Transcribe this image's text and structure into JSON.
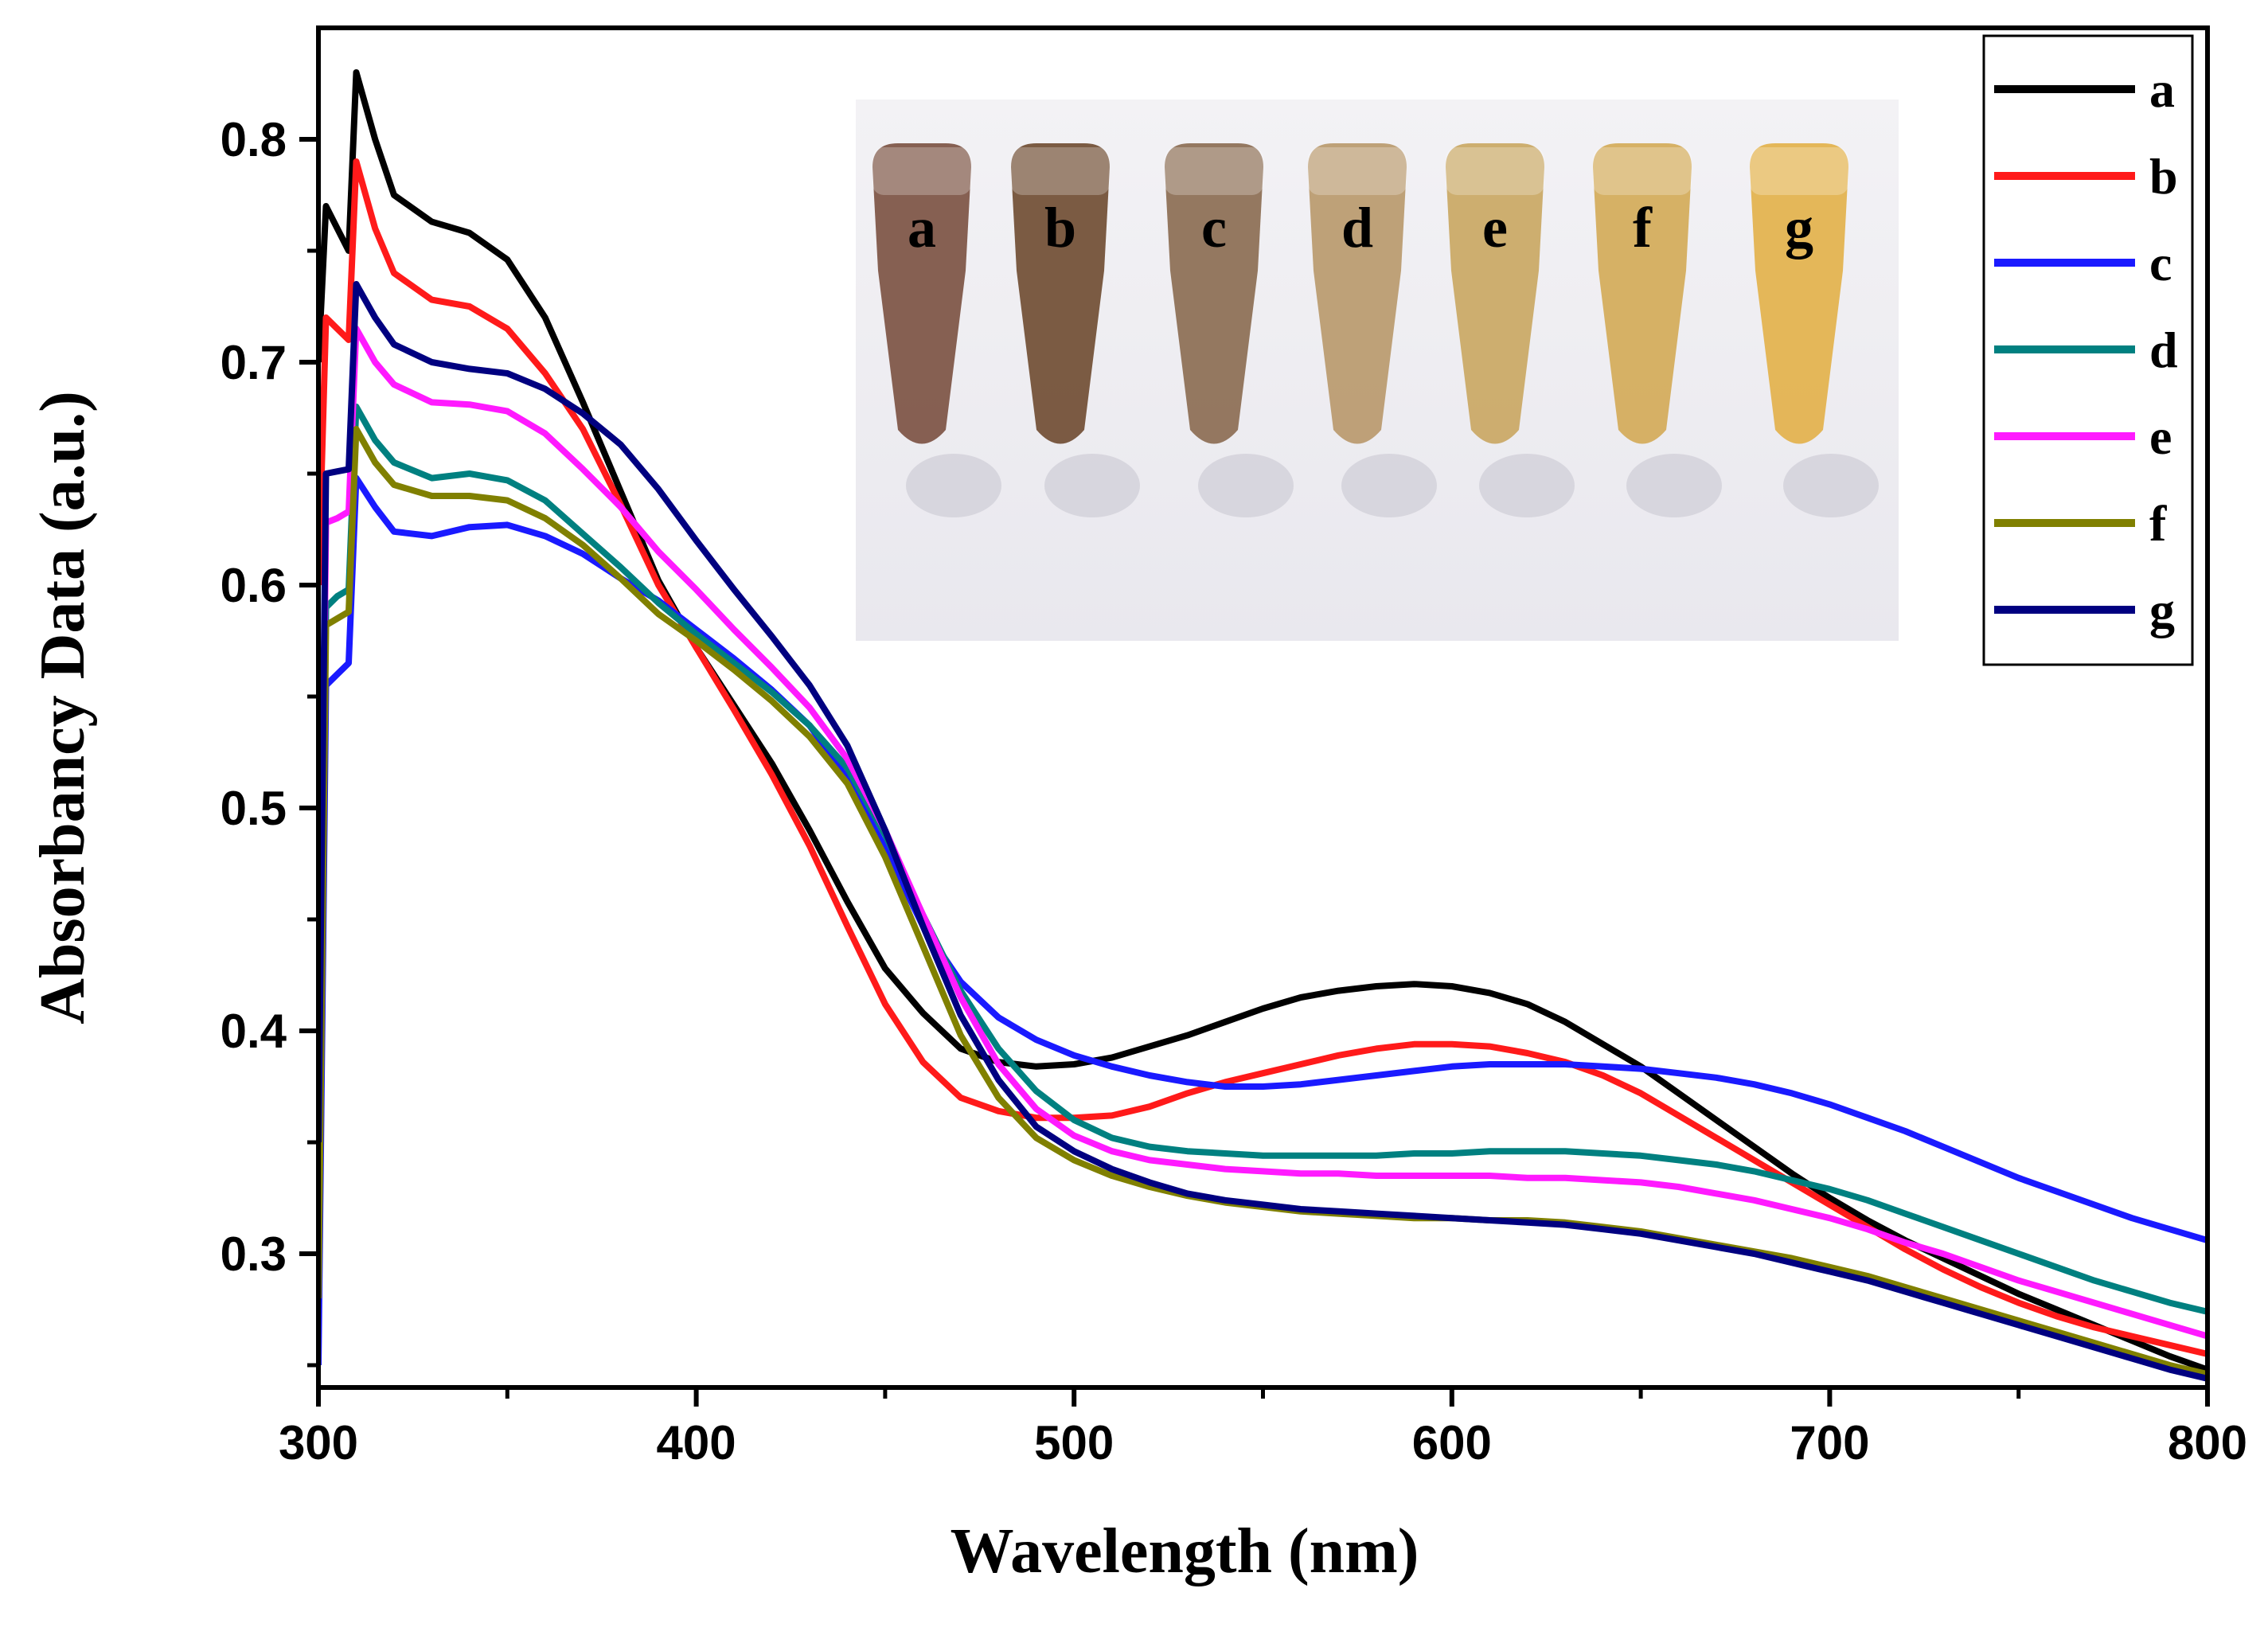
{
  "chart_data": {
    "type": "line",
    "title": "",
    "xlabel": "Wavelength (nm)",
    "ylabel": "Absorbancy Data (a.u.)",
    "xlim": [
      300,
      800
    ],
    "ylim": [
      0.24,
      0.85
    ],
    "xticks": [
      300,
      400,
      500,
      600,
      700,
      800
    ],
    "xtick_labels": [
      "300",
      "400",
      "500",
      "600",
      "700",
      "800"
    ],
    "yticks": [
      0.3,
      0.4,
      0.5,
      0.6,
      0.7,
      0.8
    ],
    "ytick_labels": [
      "0.3",
      "0.4",
      "0.5",
      "0.6",
      "0.7",
      "0.8"
    ],
    "legend_position": "top-right",
    "series": [
      {
        "name": "a",
        "color": "#000000",
        "x": [
          300,
          302,
          305,
          308,
          310,
          315,
          320,
          330,
          340,
          350,
          360,
          370,
          380,
          390,
          400,
          410,
          420,
          430,
          440,
          450,
          460,
          470,
          480,
          490,
          500,
          510,
          520,
          530,
          540,
          550,
          560,
          570,
          580,
          590,
          600,
          610,
          620,
          630,
          640,
          650,
          660,
          670,
          680,
          690,
          700,
          710,
          720,
          730,
          740,
          750,
          760,
          770,
          780,
          790,
          800
        ],
        "y": [
          0.7,
          0.77,
          0.76,
          0.75,
          0.83,
          0.8,
          0.775,
          0.763,
          0.758,
          0.746,
          0.72,
          0.682,
          0.642,
          0.602,
          0.572,
          0.546,
          0.52,
          0.49,
          0.458,
          0.428,
          0.408,
          0.392,
          0.386,
          0.384,
          0.385,
          0.388,
          0.393,
          0.398,
          0.404,
          0.41,
          0.415,
          0.418,
          0.42,
          0.421,
          0.42,
          0.417,
          0.412,
          0.404,
          0.394,
          0.384,
          0.372,
          0.36,
          0.348,
          0.336,
          0.325,
          0.315,
          0.306,
          0.298,
          0.29,
          0.282,
          0.275,
          0.268,
          0.261,
          0.254,
          0.248
        ]
      },
      {
        "name": "b",
        "color": "#ff1a1a",
        "x": [
          300,
          302,
          305,
          308,
          310,
          315,
          320,
          330,
          340,
          350,
          360,
          370,
          380,
          390,
          400,
          410,
          420,
          430,
          440,
          450,
          460,
          470,
          480,
          490,
          500,
          510,
          520,
          530,
          540,
          550,
          560,
          570,
          580,
          590,
          600,
          610,
          620,
          630,
          640,
          650,
          660,
          670,
          680,
          690,
          700,
          710,
          720,
          730,
          740,
          750,
          760,
          770,
          780,
          790,
          800
        ],
        "y": [
          0.6,
          0.72,
          0.715,
          0.71,
          0.79,
          0.76,
          0.74,
          0.728,
          0.725,
          0.715,
          0.695,
          0.67,
          0.636,
          0.6,
          0.572,
          0.544,
          0.515,
          0.483,
          0.447,
          0.412,
          0.386,
          0.37,
          0.364,
          0.361,
          0.361,
          0.362,
          0.366,
          0.372,
          0.377,
          0.381,
          0.385,
          0.389,
          0.392,
          0.394,
          0.394,
          0.393,
          0.39,
          0.386,
          0.38,
          0.372,
          0.362,
          0.352,
          0.342,
          0.332,
          0.322,
          0.312,
          0.302,
          0.293,
          0.285,
          0.278,
          0.272,
          0.267,
          0.263,
          0.259,
          0.255
        ]
      },
      {
        "name": "c",
        "color": "#1a1aff",
        "x": [
          300,
          302,
          305,
          308,
          310,
          315,
          320,
          330,
          340,
          350,
          360,
          370,
          380,
          390,
          400,
          410,
          420,
          430,
          440,
          450,
          460,
          470,
          480,
          490,
          500,
          510,
          520,
          530,
          540,
          550,
          560,
          570,
          580,
          590,
          600,
          610,
          620,
          630,
          640,
          650,
          660,
          670,
          680,
          690,
          700,
          710,
          720,
          730,
          740,
          750,
          760,
          770,
          780,
          790,
          800
        ],
        "y": [
          0.25,
          0.555,
          0.56,
          0.565,
          0.648,
          0.635,
          0.624,
          0.622,
          0.626,
          0.627,
          0.622,
          0.614,
          0.603,
          0.593,
          0.58,
          0.567,
          0.553,
          0.537,
          0.513,
          0.482,
          0.447,
          0.422,
          0.406,
          0.396,
          0.389,
          0.384,
          0.38,
          0.377,
          0.375,
          0.375,
          0.376,
          0.378,
          0.38,
          0.382,
          0.384,
          0.385,
          0.385,
          0.385,
          0.384,
          0.383,
          0.381,
          0.379,
          0.376,
          0.372,
          0.367,
          0.361,
          0.355,
          0.348,
          0.341,
          0.334,
          0.328,
          0.322,
          0.316,
          0.311,
          0.306
        ]
      },
      {
        "name": "d",
        "color": "#008080",
        "x": [
          300,
          302,
          305,
          308,
          310,
          315,
          320,
          330,
          340,
          350,
          360,
          370,
          380,
          390,
          400,
          410,
          420,
          430,
          440,
          450,
          460,
          470,
          480,
          490,
          500,
          510,
          520,
          530,
          540,
          550,
          560,
          570,
          580,
          590,
          600,
          610,
          620,
          630,
          640,
          650,
          660,
          670,
          680,
          690,
          700,
          710,
          720,
          730,
          740,
          750,
          760,
          770,
          780,
          790,
          800
        ],
        "y": [
          0.3,
          0.59,
          0.595,
          0.598,
          0.68,
          0.665,
          0.655,
          0.648,
          0.65,
          0.647,
          0.638,
          0.623,
          0.608,
          0.592,
          0.578,
          0.565,
          0.552,
          0.537,
          0.518,
          0.488,
          0.452,
          0.418,
          0.392,
          0.373,
          0.36,
          0.352,
          0.348,
          0.346,
          0.345,
          0.344,
          0.344,
          0.344,
          0.344,
          0.345,
          0.345,
          0.346,
          0.346,
          0.346,
          0.345,
          0.344,
          0.342,
          0.34,
          0.337,
          0.333,
          0.329,
          0.324,
          0.318,
          0.312,
          0.306,
          0.3,
          0.294,
          0.288,
          0.283,
          0.278,
          0.274
        ]
      },
      {
        "name": "e",
        "color": "#ff1aff",
        "x": [
          300,
          302,
          305,
          308,
          310,
          315,
          320,
          330,
          340,
          350,
          360,
          370,
          380,
          390,
          400,
          410,
          420,
          430,
          440,
          450,
          460,
          470,
          480,
          490,
          500,
          510,
          520,
          530,
          540,
          550,
          560,
          570,
          580,
          590,
          600,
          610,
          620,
          630,
          640,
          650,
          660,
          670,
          680,
          690,
          700,
          710,
          720,
          730,
          740,
          750,
          760,
          770,
          780,
          790,
          800
        ],
        "y": [
          0.33,
          0.628,
          0.63,
          0.633,
          0.715,
          0.7,
          0.69,
          0.682,
          0.681,
          0.678,
          0.668,
          0.652,
          0.635,
          0.615,
          0.598,
          0.58,
          0.563,
          0.545,
          0.522,
          0.49,
          0.452,
          0.415,
          0.385,
          0.365,
          0.353,
          0.346,
          0.342,
          0.34,
          0.338,
          0.337,
          0.336,
          0.336,
          0.335,
          0.335,
          0.335,
          0.335,
          0.334,
          0.334,
          0.333,
          0.332,
          0.33,
          0.327,
          0.324,
          0.32,
          0.316,
          0.311,
          0.305,
          0.3,
          0.294,
          0.288,
          0.283,
          0.278,
          0.273,
          0.268,
          0.263
        ]
      },
      {
        "name": "f",
        "color": "#808000",
        "x": [
          300,
          302,
          305,
          308,
          310,
          315,
          320,
          330,
          340,
          350,
          360,
          370,
          380,
          390,
          400,
          410,
          420,
          430,
          440,
          450,
          460,
          470,
          480,
          490,
          500,
          510,
          520,
          530,
          540,
          550,
          560,
          570,
          580,
          590,
          600,
          610,
          620,
          630,
          640,
          650,
          660,
          670,
          680,
          690,
          700,
          710,
          720,
          730,
          740,
          750,
          760,
          770,
          780,
          790,
          800
        ],
        "y": [
          0.28,
          0.582,
          0.585,
          0.588,
          0.67,
          0.655,
          0.645,
          0.64,
          0.64,
          0.638,
          0.63,
          0.618,
          0.603,
          0.587,
          0.575,
          0.562,
          0.548,
          0.532,
          0.511,
          0.478,
          0.438,
          0.398,
          0.37,
          0.352,
          0.342,
          0.335,
          0.33,
          0.326,
          0.323,
          0.321,
          0.319,
          0.318,
          0.317,
          0.316,
          0.316,
          0.315,
          0.315,
          0.314,
          0.312,
          0.31,
          0.307,
          0.304,
          0.301,
          0.298,
          0.294,
          0.29,
          0.285,
          0.28,
          0.275,
          0.27,
          0.265,
          0.26,
          0.255,
          0.25,
          0.246
        ]
      },
      {
        "name": "g",
        "color": "#000080",
        "x": [
          300,
          302,
          305,
          308,
          310,
          315,
          320,
          330,
          340,
          350,
          360,
          370,
          380,
          390,
          400,
          410,
          420,
          430,
          440,
          450,
          460,
          470,
          480,
          490,
          500,
          510,
          520,
          530,
          540,
          550,
          560,
          570,
          580,
          590,
          600,
          610,
          620,
          630,
          640,
          650,
          660,
          670,
          680,
          690,
          700,
          710,
          720,
          730,
          740,
          750,
          760,
          770,
          780,
          790,
          800
        ],
        "y": [
          0.35,
          0.65,
          0.651,
          0.652,
          0.735,
          0.72,
          0.708,
          0.7,
          0.697,
          0.695,
          0.688,
          0.677,
          0.663,
          0.643,
          0.62,
          0.598,
          0.577,
          0.555,
          0.528,
          0.49,
          0.447,
          0.407,
          0.378,
          0.357,
          0.346,
          0.338,
          0.332,
          0.327,
          0.324,
          0.322,
          0.32,
          0.319,
          0.318,
          0.317,
          0.316,
          0.315,
          0.314,
          0.313,
          0.311,
          0.309,
          0.306,
          0.303,
          0.3,
          0.296,
          0.292,
          0.288,
          0.283,
          0.278,
          0.273,
          0.268,
          0.263,
          0.258,
          0.253,
          0.248,
          0.244
        ]
      }
    ],
    "inset_labels": [
      "a",
      "b",
      "c",
      "d",
      "e",
      "f",
      "g"
    ],
    "inset_colors": [
      "#7a5040",
      "#6e4a30",
      "#8a6a50",
      "#b8986a",
      "#c9a660",
      "#d3aa55",
      "#e2b048"
    ]
  }
}
